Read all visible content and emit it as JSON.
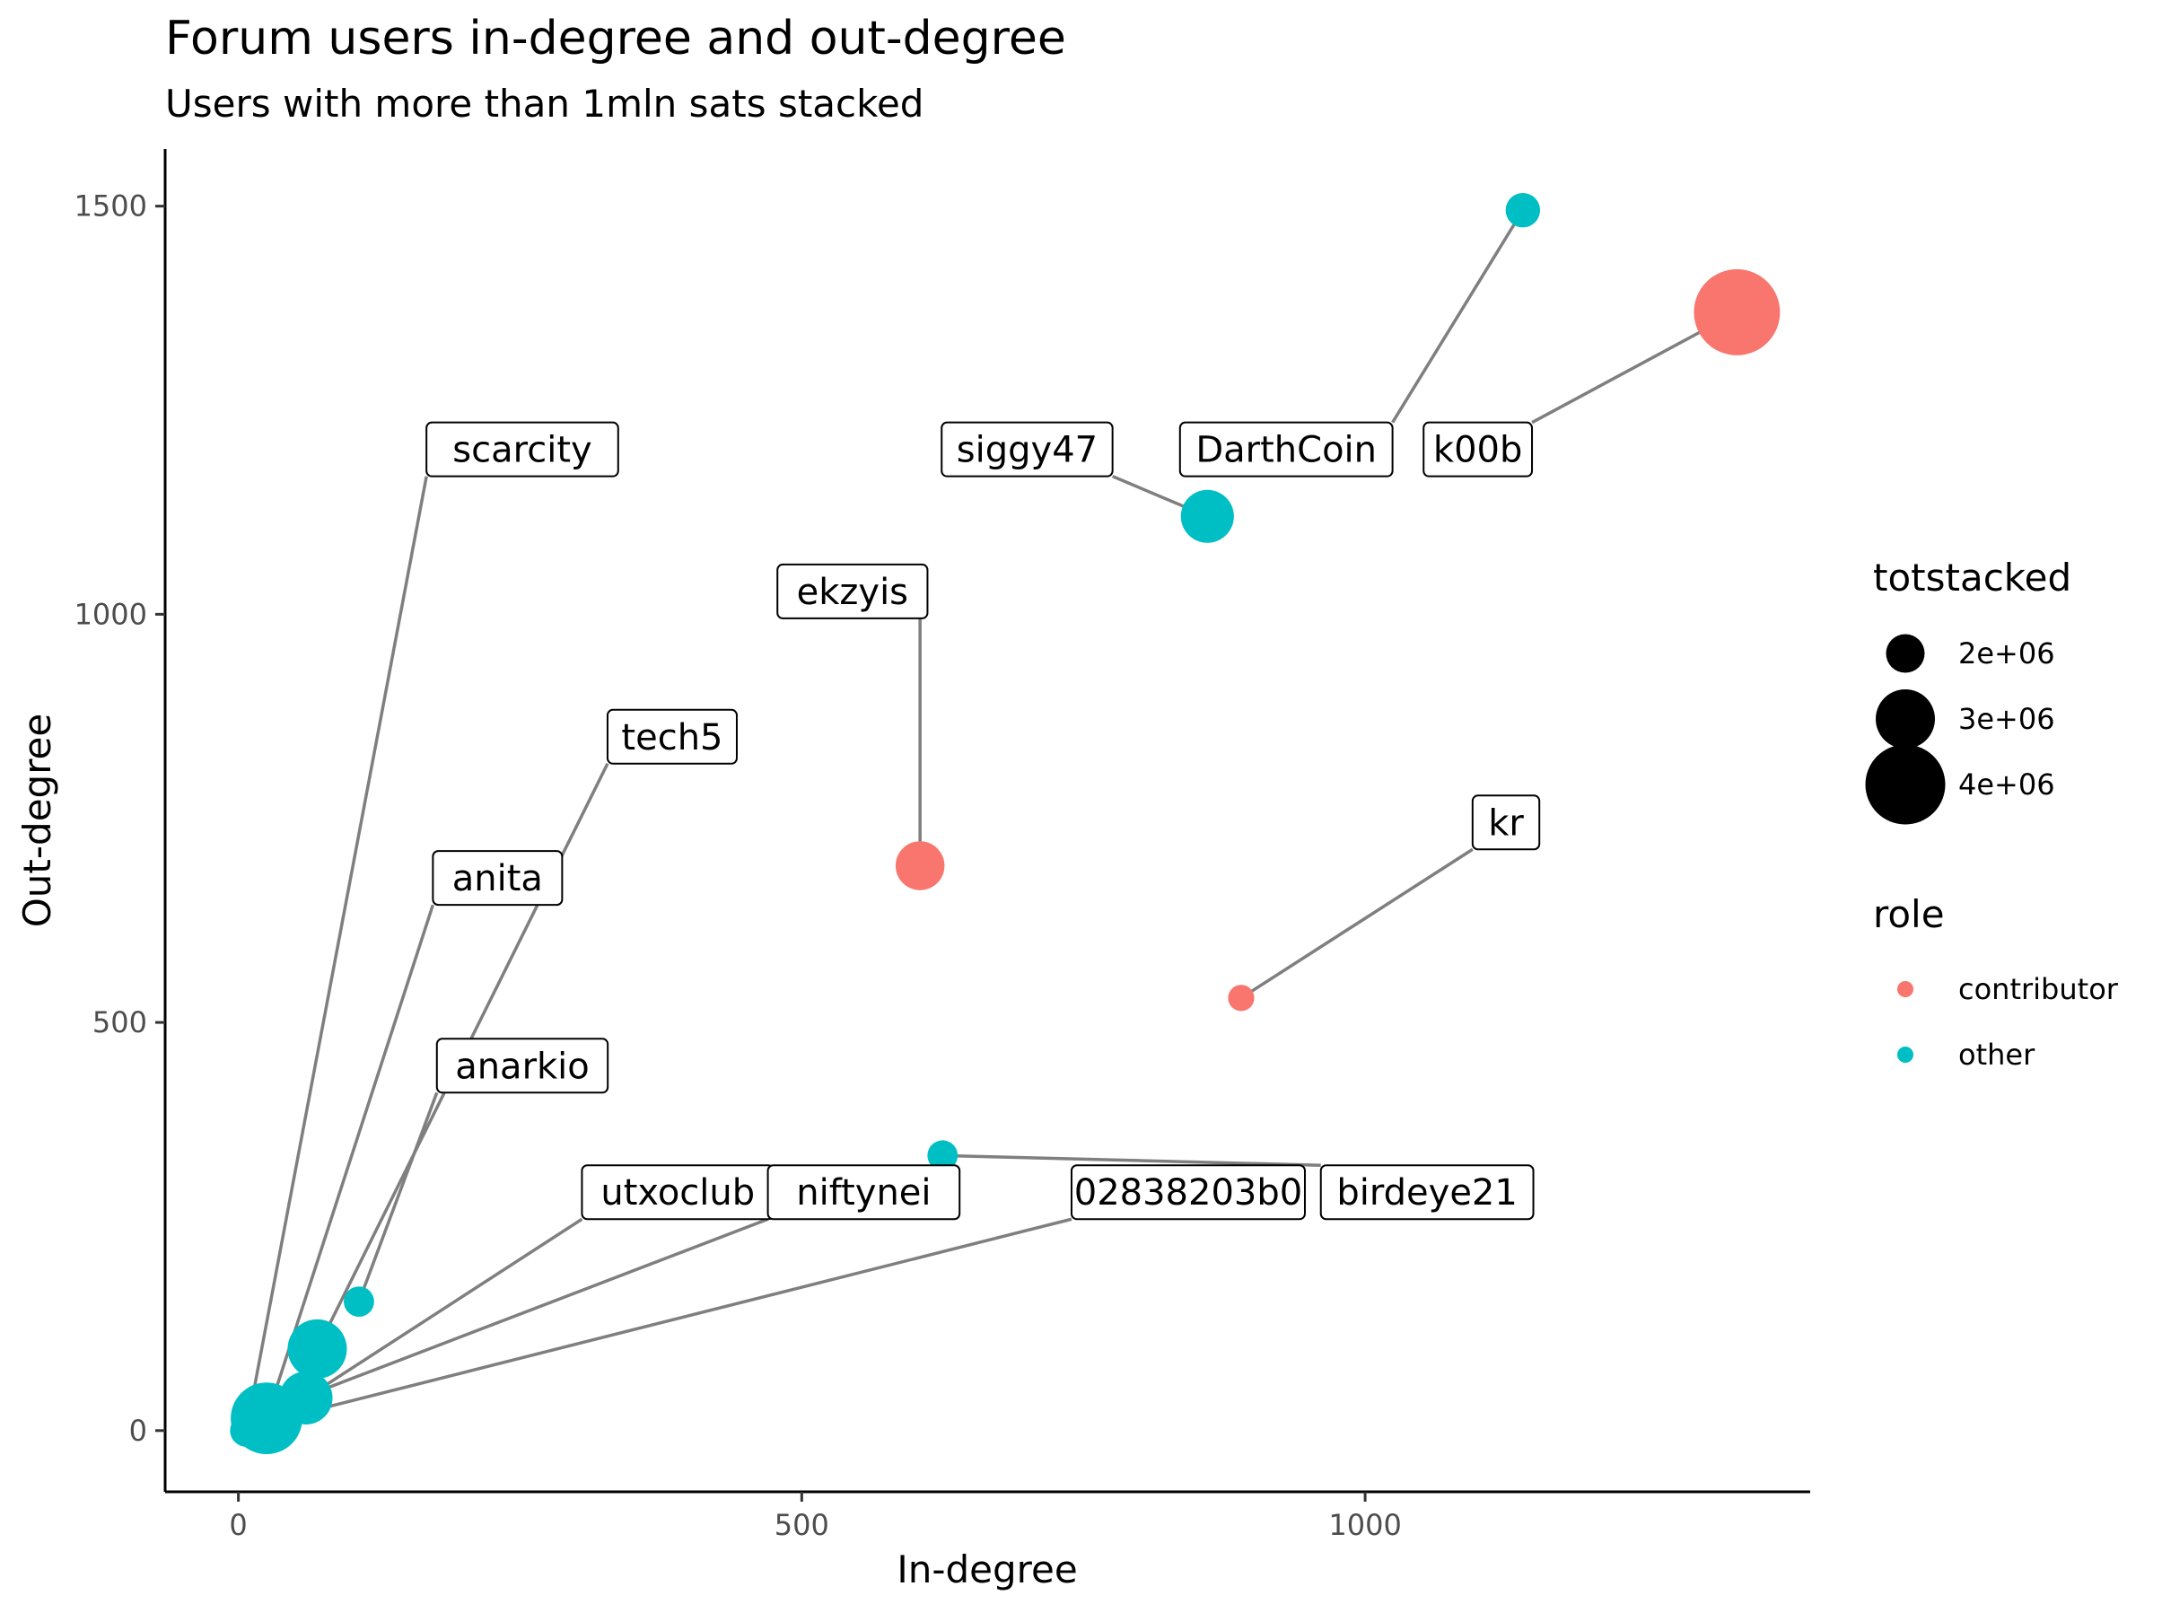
{
  "chart_data": {
    "type": "scatter",
    "title": "Forum users in-degree and out-degree",
    "subtitle": "Users with more than 1mln sats stacked",
    "xlabel": "In-degree",
    "ylabel": "Out-degree",
    "xlim": [
      -65,
      1395
    ],
    "ylim": [
      -75,
      1570
    ],
    "x_ticks": [
      0,
      500,
      1000
    ],
    "y_ticks": [
      0,
      500,
      1000,
      1500
    ],
    "grid": false,
    "colors": {
      "contributor": "#F8766D",
      "other": "#00BFC4"
    },
    "points": [
      {
        "x": 1330,
        "y": 1370,
        "role": "contributor",
        "totstacked": 4300000,
        "label": "k00b"
      },
      {
        "x": 1140,
        "y": 1495,
        "role": "other",
        "totstacked": 1800000,
        "label": "DarthCoin"
      },
      {
        "x": 860,
        "y": 1120,
        "role": "other",
        "totstacked": 2700000,
        "label": "siggy47"
      },
      {
        "x": 605,
        "y": 692,
        "role": "contributor",
        "totstacked": 2500000,
        "label": "ekzyis"
      },
      {
        "x": 890,
        "y": 530,
        "role": "contributor",
        "totstacked": 1400000,
        "label": "kr"
      },
      {
        "x": 625,
        "y": 337,
        "role": "other",
        "totstacked": 1600000,
        "label": "birdeye21"
      },
      {
        "x": 107,
        "y": 158,
        "role": "other",
        "totstacked": 1600000,
        "label": "anarkio"
      },
      {
        "x": 70,
        "y": 100,
        "role": "other",
        "totstacked": 3000000,
        "label": "tech5"
      },
      {
        "x": 60,
        "y": 40,
        "role": "other",
        "totstacked": 2700000,
        "label": "utxoclub"
      },
      {
        "x": 25,
        "y": 15,
        "role": "other",
        "totstacked": 3600000,
        "label": "anita"
      },
      {
        "x": 18,
        "y": 20,
        "role": "other",
        "totstacked": 2300000,
        "label": "niftynei"
      },
      {
        "x": 10,
        "y": 5,
        "role": "other",
        "totstacked": 1800000,
        "label": "02838203b0"
      },
      {
        "x": 7,
        "y": 0,
        "role": "other",
        "totstacked": 1700000,
        "label": "scarcity"
      }
    ],
    "labels": [
      {
        "text": "scarcity",
        "x": 252,
        "y": 1202,
        "point": 12
      },
      {
        "text": "siggy47",
        "x": 700,
        "y": 1202,
        "point": 2
      },
      {
        "text": "DarthCoin",
        "x": 930,
        "y": 1202,
        "point": 1
      },
      {
        "text": "k00b",
        "x": 1100,
        "y": 1202,
        "point": 0
      },
      {
        "text": "ekzyis",
        "x": 545,
        "y": 1028,
        "point": 3
      },
      {
        "text": "tech5",
        "x": 385,
        "y": 850,
        "point": 7
      },
      {
        "text": "anita",
        "x": 230,
        "y": 677,
        "point": 9
      },
      {
        "text": "kr",
        "x": 1125,
        "y": 745,
        "point": 4
      },
      {
        "text": "anarkio",
        "x": 252,
        "y": 447,
        "point": 6
      },
      {
        "text": "utxoclub",
        "x": 390,
        "y": 292,
        "point": 8
      },
      {
        "text": "niftynei",
        "x": 555,
        "y": 292,
        "point": 10
      },
      {
        "text": "02838203b0",
        "x": 843,
        "y": 292,
        "point": 11
      },
      {
        "text": "birdeye21",
        "x": 1055,
        "y": 292,
        "point": 5
      }
    ],
    "legend": {
      "placement": "right",
      "size_title": "totstacked",
      "size_entries": [
        {
          "label": "2e+06",
          "value": 2000000
        },
        {
          "label": "3e+06",
          "value": 3000000
        },
        {
          "label": "4e+06",
          "value": 4000000
        }
      ],
      "color_title": "role",
      "color_entries": [
        {
          "label": "contributor",
          "role": "contributor"
        },
        {
          "label": "other",
          "role": "other"
        }
      ]
    }
  }
}
